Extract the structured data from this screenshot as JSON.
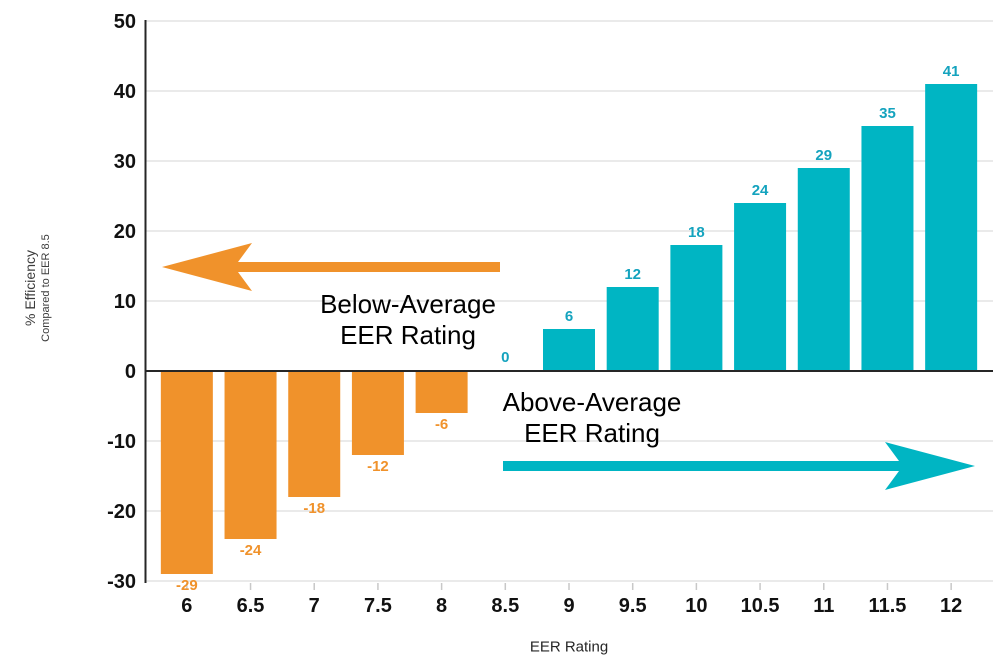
{
  "page": {
    "background": "#FFFFFF"
  },
  "chart_data": {
    "type": "bar",
    "title": "",
    "xlabel": "EER Rating",
    "ylabel": "% Efficiency",
    "ylabel_sub": "Compared to EER 8.5",
    "categories": [
      "6",
      "6.5",
      "7",
      "7.5",
      "8",
      "8.5",
      "9",
      "9.5",
      "10",
      "10.5",
      "11",
      "11.5",
      "12"
    ],
    "values": [
      -29,
      -24,
      -18,
      -12,
      -6,
      0,
      6,
      12,
      18,
      24,
      29,
      35,
      41
    ],
    "ylim": [
      -30,
      50
    ],
    "y_ticks": [
      50,
      40,
      30,
      20,
      10,
      0,
      -10,
      -20,
      -30
    ],
    "grid": true,
    "legend": "none",
    "bar_colors": {
      "negative": "#F0922B",
      "positive": "#00B5C3"
    },
    "label_colors": {
      "negative": "#F0922B",
      "positive": "#14A3BE"
    },
    "axis": {
      "tick_label_color": "#111111",
      "line_color": "#262626",
      "grid_color": "#E4E4E4",
      "minor_tick_color": "#C8C8C8"
    },
    "annotations": [
      {
        "lines": [
          "Below-Average",
          "EER Rating"
        ],
        "arrow_direction": "left",
        "arrow_color": "#F0922B"
      },
      {
        "lines": [
          "Above-Average",
          "EER Rating"
        ],
        "arrow_direction": "right",
        "arrow_color": "#00B5C3"
      }
    ]
  }
}
